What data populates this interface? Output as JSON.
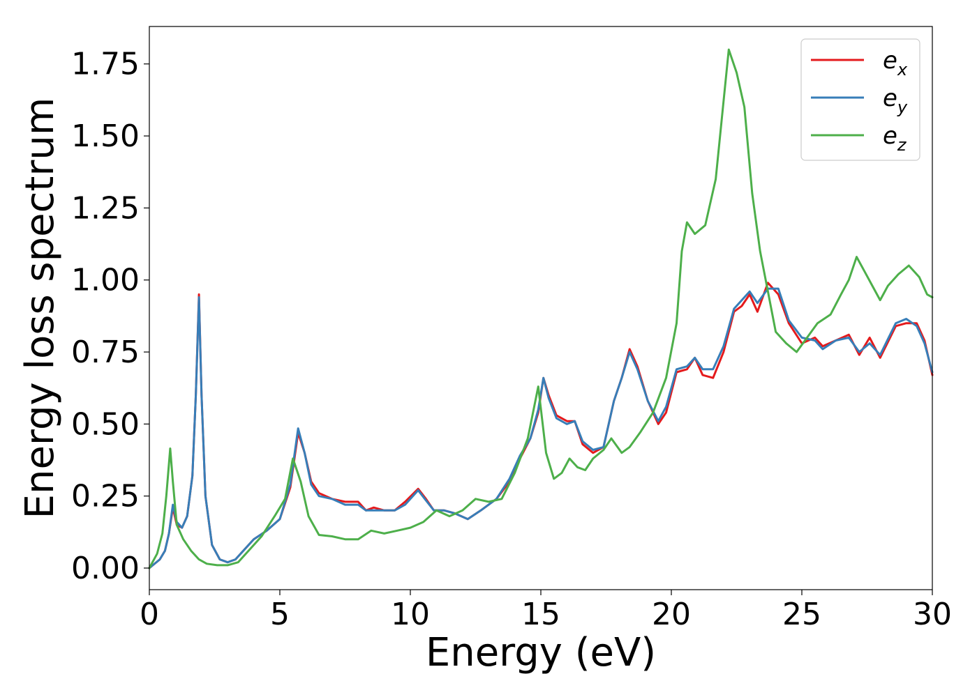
{
  "chart_data": {
    "type": "line",
    "xlabel": "Energy (eV)",
    "ylabel": "Energy loss spectrum",
    "xlim": [
      0,
      30
    ],
    "ylim": [
      -0.075,
      1.88
    ],
    "xticks": [
      0,
      5,
      10,
      15,
      20,
      25,
      30
    ],
    "xtick_labels": [
      "0",
      "5",
      "10",
      "15",
      "20",
      "25",
      "30"
    ],
    "yticks": [
      0,
      0.25,
      0.5,
      0.75,
      1.0,
      1.25,
      1.5,
      1.75
    ],
    "ytick_labels": [
      "0.00",
      "0.25",
      "0.50",
      "0.75",
      "1.00",
      "1.25",
      "1.50",
      "1.75"
    ],
    "grid": false,
    "legend_position": "top-right",
    "series": [
      {
        "name": "e",
        "sub": "x",
        "color": "#e41a1c",
        "points": [
          [
            0,
            0
          ],
          [
            0.4,
            0.03
          ],
          [
            0.6,
            0.06
          ],
          [
            0.75,
            0.12
          ],
          [
            0.9,
            0.21
          ],
          [
            1.05,
            0.15
          ],
          [
            1.25,
            0.14
          ],
          [
            1.45,
            0.18
          ],
          [
            1.65,
            0.32
          ],
          [
            1.78,
            0.6
          ],
          [
            1.9,
            0.95
          ],
          [
            2.0,
            0.6
          ],
          [
            2.15,
            0.25
          ],
          [
            2.4,
            0.08
          ],
          [
            2.7,
            0.03
          ],
          [
            3.0,
            0.02
          ],
          [
            3.3,
            0.03
          ],
          [
            3.6,
            0.06
          ],
          [
            4.0,
            0.1
          ],
          [
            4.5,
            0.13
          ],
          [
            5.0,
            0.17
          ],
          [
            5.4,
            0.28
          ],
          [
            5.7,
            0.47
          ],
          [
            5.95,
            0.4
          ],
          [
            6.2,
            0.3
          ],
          [
            6.5,
            0.26
          ],
          [
            7.0,
            0.24
          ],
          [
            7.5,
            0.23
          ],
          [
            8.0,
            0.23
          ],
          [
            8.3,
            0.2
          ],
          [
            8.6,
            0.21
          ],
          [
            9.0,
            0.2
          ],
          [
            9.4,
            0.2
          ],
          [
            9.8,
            0.23
          ],
          [
            10.3,
            0.275
          ],
          [
            10.6,
            0.24
          ],
          [
            10.9,
            0.2
          ],
          [
            11.3,
            0.2
          ],
          [
            11.7,
            0.19
          ],
          [
            12.2,
            0.17
          ],
          [
            12.7,
            0.2
          ],
          [
            13.3,
            0.24
          ],
          [
            13.8,
            0.3
          ],
          [
            14.2,
            0.38
          ],
          [
            14.6,
            0.45
          ],
          [
            14.9,
            0.54
          ],
          [
            15.1,
            0.66
          ],
          [
            15.3,
            0.6
          ],
          [
            15.6,
            0.53
          ],
          [
            16.0,
            0.51
          ],
          [
            16.3,
            0.51
          ],
          [
            16.6,
            0.43
          ],
          [
            17.0,
            0.4
          ],
          [
            17.4,
            0.42
          ],
          [
            17.8,
            0.58
          ],
          [
            18.1,
            0.66
          ],
          [
            18.4,
            0.76
          ],
          [
            18.7,
            0.7
          ],
          [
            19.1,
            0.58
          ],
          [
            19.5,
            0.5
          ],
          [
            19.8,
            0.54
          ],
          [
            20.2,
            0.68
          ],
          [
            20.6,
            0.69
          ],
          [
            20.9,
            0.73
          ],
          [
            21.2,
            0.67
          ],
          [
            21.6,
            0.66
          ],
          [
            22.0,
            0.75
          ],
          [
            22.4,
            0.89
          ],
          [
            22.7,
            0.91
          ],
          [
            23.0,
            0.95
          ],
          [
            23.3,
            0.89
          ],
          [
            23.7,
            0.99
          ],
          [
            24.1,
            0.95
          ],
          [
            24.5,
            0.85
          ],
          [
            25.0,
            0.78
          ],
          [
            25.5,
            0.8
          ],
          [
            25.8,
            0.77
          ],
          [
            26.3,
            0.79
          ],
          [
            26.8,
            0.81
          ],
          [
            27.2,
            0.74
          ],
          [
            27.6,
            0.8
          ],
          [
            28.0,
            0.73
          ],
          [
            28.6,
            0.84
          ],
          [
            29.0,
            0.85
          ],
          [
            29.4,
            0.85
          ],
          [
            29.7,
            0.79
          ],
          [
            30.0,
            0.67
          ]
        ]
      },
      {
        "name": "e",
        "sub": "y",
        "color": "#377eb8",
        "points": [
          [
            0,
            0
          ],
          [
            0.4,
            0.03
          ],
          [
            0.6,
            0.06
          ],
          [
            0.75,
            0.12
          ],
          [
            0.9,
            0.22
          ],
          [
            1.05,
            0.16
          ],
          [
            1.25,
            0.14
          ],
          [
            1.45,
            0.18
          ],
          [
            1.65,
            0.32
          ],
          [
            1.78,
            0.6
          ],
          [
            1.9,
            0.94
          ],
          [
            2.0,
            0.6
          ],
          [
            2.15,
            0.25
          ],
          [
            2.4,
            0.08
          ],
          [
            2.7,
            0.03
          ],
          [
            3.0,
            0.02
          ],
          [
            3.3,
            0.03
          ],
          [
            3.6,
            0.06
          ],
          [
            4.0,
            0.1
          ],
          [
            4.5,
            0.13
          ],
          [
            5.0,
            0.17
          ],
          [
            5.4,
            0.29
          ],
          [
            5.7,
            0.485
          ],
          [
            5.95,
            0.4
          ],
          [
            6.2,
            0.29
          ],
          [
            6.5,
            0.25
          ],
          [
            7.0,
            0.24
          ],
          [
            7.5,
            0.22
          ],
          [
            8.0,
            0.22
          ],
          [
            8.3,
            0.2
          ],
          [
            8.6,
            0.2
          ],
          [
            9.0,
            0.2
          ],
          [
            9.4,
            0.2
          ],
          [
            9.8,
            0.22
          ],
          [
            10.3,
            0.27
          ],
          [
            10.6,
            0.235
          ],
          [
            10.9,
            0.2
          ],
          [
            11.3,
            0.2
          ],
          [
            11.7,
            0.19
          ],
          [
            12.2,
            0.17
          ],
          [
            12.7,
            0.2
          ],
          [
            13.3,
            0.24
          ],
          [
            13.8,
            0.31
          ],
          [
            14.2,
            0.39
          ],
          [
            14.6,
            0.45
          ],
          [
            14.9,
            0.55
          ],
          [
            15.1,
            0.66
          ],
          [
            15.3,
            0.59
          ],
          [
            15.6,
            0.52
          ],
          [
            16.0,
            0.5
          ],
          [
            16.3,
            0.51
          ],
          [
            16.6,
            0.44
          ],
          [
            17.0,
            0.41
          ],
          [
            17.4,
            0.42
          ],
          [
            17.8,
            0.58
          ],
          [
            18.1,
            0.66
          ],
          [
            18.4,
            0.75
          ],
          [
            18.7,
            0.69
          ],
          [
            19.1,
            0.58
          ],
          [
            19.5,
            0.51
          ],
          [
            19.8,
            0.56
          ],
          [
            20.2,
            0.69
          ],
          [
            20.6,
            0.7
          ],
          [
            20.9,
            0.73
          ],
          [
            21.2,
            0.69
          ],
          [
            21.6,
            0.69
          ],
          [
            22.0,
            0.77
          ],
          [
            22.4,
            0.9
          ],
          [
            22.7,
            0.93
          ],
          [
            23.0,
            0.96
          ],
          [
            23.3,
            0.92
          ],
          [
            23.7,
            0.97
          ],
          [
            24.1,
            0.97
          ],
          [
            24.5,
            0.86
          ],
          [
            25.0,
            0.8
          ],
          [
            25.5,
            0.79
          ],
          [
            25.8,
            0.76
          ],
          [
            26.3,
            0.79
          ],
          [
            26.8,
            0.8
          ],
          [
            27.2,
            0.75
          ],
          [
            27.6,
            0.78
          ],
          [
            28.0,
            0.74
          ],
          [
            28.6,
            0.85
          ],
          [
            29.0,
            0.865
          ],
          [
            29.4,
            0.84
          ],
          [
            29.7,
            0.78
          ],
          [
            30.0,
            0.68
          ]
        ]
      },
      {
        "name": "e",
        "sub": "z",
        "color": "#4daf4a",
        "points": [
          [
            0,
            0
          ],
          [
            0.3,
            0.05
          ],
          [
            0.5,
            0.12
          ],
          [
            0.65,
            0.25
          ],
          [
            0.8,
            0.415
          ],
          [
            0.9,
            0.3
          ],
          [
            1.05,
            0.15
          ],
          [
            1.3,
            0.1
          ],
          [
            1.6,
            0.06
          ],
          [
            1.9,
            0.03
          ],
          [
            2.2,
            0.015
          ],
          [
            2.6,
            0.01
          ],
          [
            3.0,
            0.01
          ],
          [
            3.4,
            0.02
          ],
          [
            3.8,
            0.06
          ],
          [
            4.3,
            0.11
          ],
          [
            4.8,
            0.18
          ],
          [
            5.2,
            0.24
          ],
          [
            5.5,
            0.38
          ],
          [
            5.8,
            0.3
          ],
          [
            6.1,
            0.18
          ],
          [
            6.5,
            0.115
          ],
          [
            7.0,
            0.11
          ],
          [
            7.5,
            0.1
          ],
          [
            8.0,
            0.1
          ],
          [
            8.5,
            0.13
          ],
          [
            9.0,
            0.12
          ],
          [
            9.5,
            0.13
          ],
          [
            10.0,
            0.14
          ],
          [
            10.5,
            0.16
          ],
          [
            11.0,
            0.2
          ],
          [
            11.5,
            0.18
          ],
          [
            12.0,
            0.2
          ],
          [
            12.5,
            0.24
          ],
          [
            13.0,
            0.23
          ],
          [
            13.5,
            0.24
          ],
          [
            14.0,
            0.33
          ],
          [
            14.5,
            0.45
          ],
          [
            14.9,
            0.63
          ],
          [
            15.2,
            0.4
          ],
          [
            15.5,
            0.31
          ],
          [
            15.8,
            0.33
          ],
          [
            16.1,
            0.38
          ],
          [
            16.4,
            0.35
          ],
          [
            16.7,
            0.34
          ],
          [
            17.0,
            0.38
          ],
          [
            17.4,
            0.41
          ],
          [
            17.7,
            0.45
          ],
          [
            18.1,
            0.4
          ],
          [
            18.4,
            0.42
          ],
          [
            18.8,
            0.47
          ],
          [
            19.3,
            0.54
          ],
          [
            19.8,
            0.66
          ],
          [
            20.2,
            0.85
          ],
          [
            20.4,
            1.1
          ],
          [
            20.6,
            1.2
          ],
          [
            20.9,
            1.16
          ],
          [
            21.3,
            1.19
          ],
          [
            21.7,
            1.35
          ],
          [
            22.0,
            1.62
          ],
          [
            22.2,
            1.8
          ],
          [
            22.5,
            1.72
          ],
          [
            22.8,
            1.6
          ],
          [
            23.1,
            1.3
          ],
          [
            23.4,
            1.1
          ],
          [
            23.7,
            0.96
          ],
          [
            24.0,
            0.82
          ],
          [
            24.4,
            0.78
          ],
          [
            24.8,
            0.75
          ],
          [
            25.2,
            0.8
          ],
          [
            25.6,
            0.85
          ],
          [
            26.1,
            0.88
          ],
          [
            26.5,
            0.95
          ],
          [
            26.8,
            1.0
          ],
          [
            27.1,
            1.08
          ],
          [
            27.4,
            1.03
          ],
          [
            27.7,
            0.98
          ],
          [
            28.0,
            0.93
          ],
          [
            28.3,
            0.98
          ],
          [
            28.7,
            1.02
          ],
          [
            29.1,
            1.05
          ],
          [
            29.5,
            1.01
          ],
          [
            29.8,
            0.95
          ],
          [
            30.0,
            0.94
          ]
        ]
      }
    ]
  }
}
